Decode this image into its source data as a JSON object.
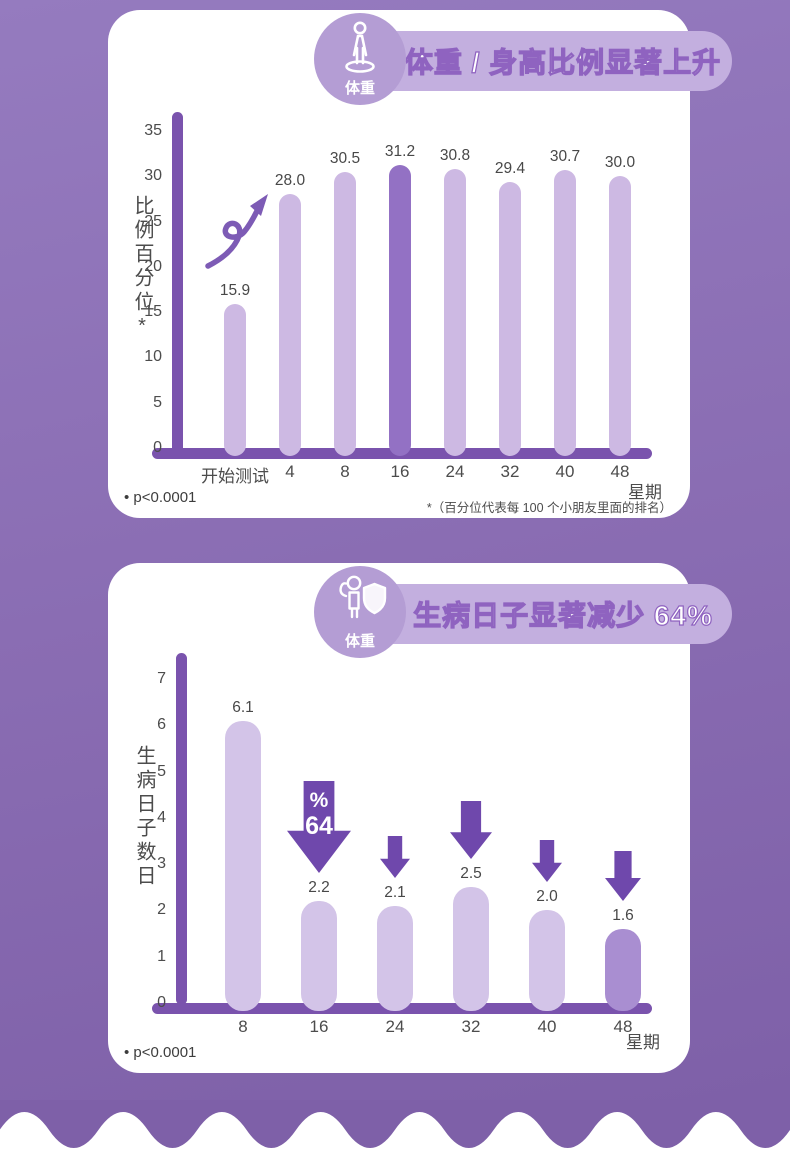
{
  "colors": {
    "background_top": "#957bbf",
    "background_bottom": "#7e60a8",
    "card": "#ffffff",
    "title_pill": "#c3afdf",
    "badge_circle": "#b49dd4",
    "title_text": "#ffffff",
    "title_outline": "#8f63c0",
    "axis": "#7a53ad",
    "bar_light_chart1": "#cdb9e3",
    "bar_highlight_chart1": "#9371c4",
    "bar_light_chart2": "#d3c4e8",
    "bar_highlight_chart2": "#a98ed1",
    "arrow": "#6f48ac",
    "doodle_arrow": "#7d5bb5",
    "label_text": "#4c4c4c"
  },
  "chart_data": [
    {
      "type": "bar",
      "badge": "体重",
      "badge_icon": "person-height-scale-icon",
      "title": "体重 / 身高比例显著上升",
      "ylabel": "比例百分位*",
      "xlabel": "星期",
      "categories": [
        "开始测试",
        "4",
        "8",
        "16",
        "24",
        "32",
        "40",
        "48"
      ],
      "values": [
        15.9,
        28.0,
        30.5,
        31.2,
        30.8,
        29.4,
        30.7,
        30.0
      ],
      "value_labels": [
        "15.9",
        "28.0",
        "30.5",
        "31.2",
        "30.8",
        "29.4",
        "30.7",
        "30.0"
      ],
      "highlight_index": 3,
      "yticks": [
        35,
        30,
        25,
        20,
        15,
        10,
        5,
        0
      ],
      "ylim": [
        0,
        36
      ],
      "grid": false,
      "legend": "none",
      "footnote_left": "• p<0.0001",
      "footnote_right": "*（百分位代表每 100 个小朋友里面的排名）"
    },
    {
      "type": "bar",
      "badge": "体重",
      "badge_icon": "person-shield-icon",
      "title": "生病日子显著减少 64%",
      "ylabel": "生病日子数日",
      "xlabel": "星期",
      "categories": [
        "8",
        "16",
        "24",
        "32",
        "40",
        "48"
      ],
      "values": [
        6.1,
        2.2,
        2.1,
        2.5,
        2.0,
        1.6
      ],
      "value_labels": [
        "6.1",
        "2.2",
        "2.1",
        "2.5",
        "2.0",
        "1.6"
      ],
      "highlight_index": 5,
      "yticks": [
        7,
        6,
        5,
        4,
        3,
        2,
        1,
        0
      ],
      "ylim": [
        0,
        7.3
      ],
      "grid": false,
      "legend": "none",
      "footnote_left": "• p<0.0001",
      "arrows": [
        {
          "index": 1,
          "style": "big",
          "label_line1": "%",
          "label_line2": "64"
        },
        {
          "index": 2,
          "style": "small"
        },
        {
          "index": 3,
          "style": "medium"
        },
        {
          "index": 4,
          "style": "small"
        },
        {
          "index": 5,
          "style": "msmall"
        }
      ]
    }
  ]
}
